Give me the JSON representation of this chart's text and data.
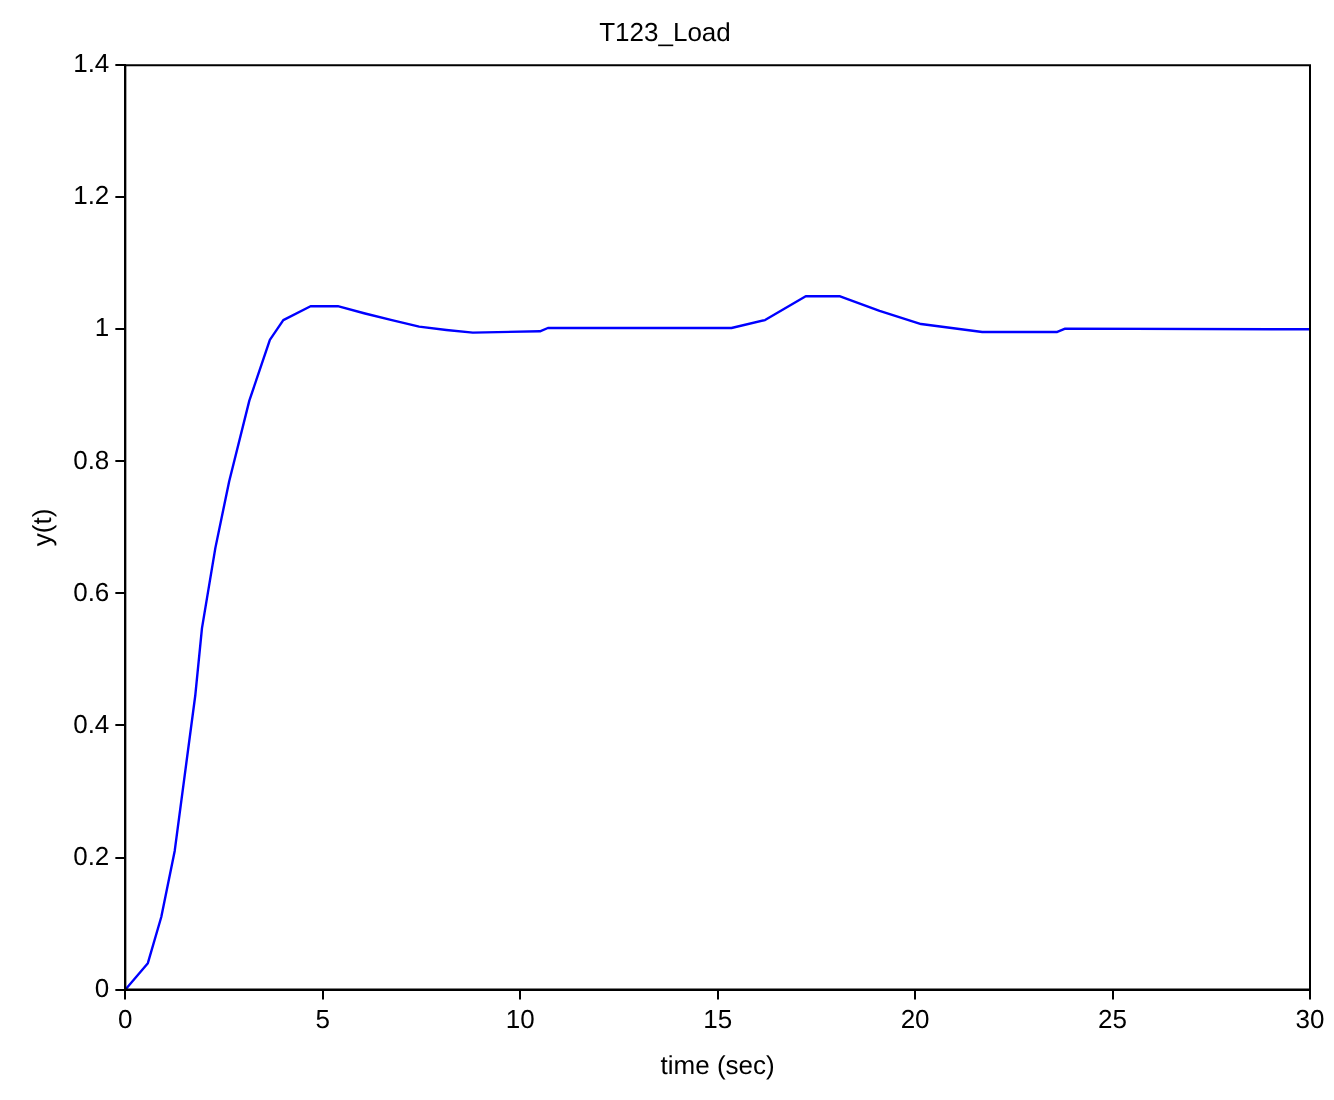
{
  "chart_data": {
    "type": "line",
    "title": "T123_Load",
    "xlabel": "time (sec)",
    "ylabel": "y(t)",
    "x": [
      0,
      0.57,
      0.91,
      1.25,
      1.77,
      1.94,
      2.28,
      2.63,
      3.14,
      3.66,
      4.0,
      4.69,
      5.38,
      6.07,
      6.75,
      7.44,
      8.13,
      8.8,
      10.5,
      10.7,
      15.35,
      16.2,
      17.23,
      18.1,
      19.1,
      20.15,
      21.7,
      23.6,
      23.8,
      30
    ],
    "series": [
      {
        "color": "#0000ff",
        "values": [
          0,
          0.04,
          0.11,
          0.21,
          0.445,
          0.547,
          0.669,
          0.77,
          0.892,
          0.984,
          1.014,
          1.035,
          1.035,
          1.024,
          1.014,
          1.004,
          0.999,
          0.995,
          0.997,
          1.002,
          1.002,
          1.014,
          1.05,
          1.05,
          1.028,
          1.008,
          0.996,
          0.996,
          1.001,
          1.0
        ]
      }
    ],
    "xlim": [
      0,
      30
    ],
    "xticks": [
      0,
      5,
      10,
      15,
      20,
      25,
      30
    ],
    "ylim": [
      0,
      1.4
    ],
    "yticks": [
      0,
      0.2,
      0.4,
      0.6,
      0.8,
      1,
      1.2,
      1.4
    ],
    "grid": false,
    "legend": false,
    "marker": "none",
    "line_style": "solid"
  }
}
